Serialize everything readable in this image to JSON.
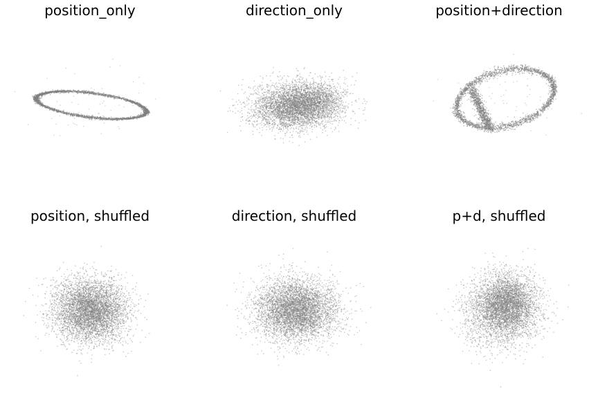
{
  "figure": {
    "point_color": "#808080",
    "background": "#ffffff"
  },
  "chart_data": [
    {
      "type": "scatter",
      "title": "position_only",
      "xlabel": "",
      "ylabel": "",
      "axes_visible": false,
      "grid": false,
      "shape": "ellipse-ring",
      "approx_points": 2600,
      "cluster": {
        "cx": 0.0,
        "cy": 0.0,
        "rx": 1.0,
        "ry": 0.22,
        "rotation_deg": 7,
        "spread": 0.03
      }
    },
    {
      "type": "scatter",
      "title": "direction_only",
      "xlabel": "",
      "ylabel": "",
      "axes_visible": false,
      "grid": false,
      "shape": "two-blobs",
      "approx_points": 5000,
      "clusters": [
        {
          "cx": -0.25,
          "cy": 0.05,
          "sx": 0.35,
          "sy": 0.22,
          "weight": 0.5
        },
        {
          "cx": 0.25,
          "cy": -0.05,
          "sx": 0.32,
          "sy": 0.2,
          "weight": 0.5
        }
      ]
    },
    {
      "type": "scatter",
      "title": "position+direction",
      "xlabel": "",
      "ylabel": "",
      "axes_visible": false,
      "grid": false,
      "shape": "tilted-loop",
      "approx_points": 3000,
      "cluster": {
        "cx": 0.0,
        "cy": 0.0,
        "rx": 1.0,
        "ry": 0.55,
        "rotation_deg": -15,
        "spread": 0.04
      }
    },
    {
      "type": "scatter",
      "title": "position, shuffled",
      "xlabel": "",
      "ylabel": "",
      "axes_visible": false,
      "grid": false,
      "shape": "gaussian-blob",
      "approx_points": 5000,
      "clusters": [
        {
          "cx": 0.0,
          "cy": 0.0,
          "sx": 0.33,
          "sy": 0.28,
          "weight": 1.0
        }
      ]
    },
    {
      "type": "scatter",
      "title": "direction, shuffled",
      "xlabel": "",
      "ylabel": "",
      "axes_visible": false,
      "grid": false,
      "shape": "gaussian-blob",
      "approx_points": 5000,
      "clusters": [
        {
          "cx": 0.0,
          "cy": 0.0,
          "sx": 0.36,
          "sy": 0.27,
          "weight": 1.0
        }
      ]
    },
    {
      "type": "scatter",
      "title": "p+d, shuffled",
      "xlabel": "",
      "ylabel": "",
      "axes_visible": false,
      "grid": false,
      "shape": "gaussian-blob",
      "approx_points": 5000,
      "clusters": [
        {
          "cx": 0.05,
          "cy": -0.1,
          "sx": 0.25,
          "sy": 0.25,
          "weight": 0.55
        },
        {
          "cx": -0.05,
          "cy": 0.1,
          "sx": 0.35,
          "sy": 0.32,
          "weight": 0.45
        }
      ]
    }
  ]
}
